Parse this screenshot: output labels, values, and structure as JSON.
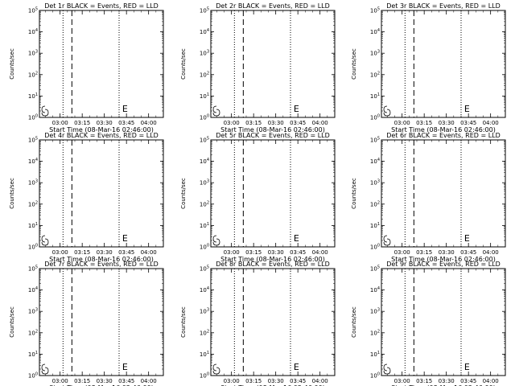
{
  "chart_data": [
    {
      "type": "line",
      "title": "Det 1r BLACK = Events, RED = LLD",
      "xlabel": "Start Time (08-Mar-16 02:46:00)",
      "ylabel": "Counts/sec",
      "x_ticks": [
        "03:00",
        "03:15",
        "03:30",
        "03:45",
        "04:00"
      ],
      "y_ticks": [
        "10^0",
        "10^1",
        "10^2",
        "10^3",
        "10^4",
        "10^5"
      ],
      "ylim": [
        1,
        100000
      ],
      "y_scale": "log",
      "xlim": [
        "02:46:00",
        "04:10:00"
      ],
      "markers": [
        {
          "time": "03:02",
          "style": "dotted"
        },
        {
          "time": "03:08",
          "style": "dashed"
        },
        {
          "time": "03:40",
          "style": "dotted"
        }
      ],
      "annotations": [
        {
          "text": "E",
          "time": "03:41"
        }
      ],
      "series": [
        {
          "values": []
        }
      ]
    },
    {
      "type": "line",
      "title": "Det 2r BLACK = Events, RED = LLD",
      "xlabel": "Start Time (08-Mar-16 02:46:00)",
      "ylabel": "Counts/sec",
      "x_ticks": [
        "03:00",
        "03:15",
        "03:30",
        "03:45",
        "04:00"
      ],
      "y_ticks": [
        "10^0",
        "10^1",
        "10^2",
        "10^3",
        "10^4",
        "10^5"
      ],
      "ylim": [
        1,
        100000
      ],
      "y_scale": "log",
      "xlim": [
        "02:46:00",
        "04:10:00"
      ],
      "markers": [
        {
          "time": "03:02",
          "style": "dotted"
        },
        {
          "time": "03:08",
          "style": "dashed"
        },
        {
          "time": "03:40",
          "style": "dotted"
        }
      ],
      "annotations": [
        {
          "text": "E",
          "time": "03:41"
        }
      ],
      "series": [
        {
          "values": []
        }
      ]
    },
    {
      "type": "line",
      "title": "Det 3r BLACK = Events, RED = LLD",
      "xlabel": "Start Time (08-Mar-16 02:46:00)",
      "ylabel": "Counts/sec",
      "x_ticks": [
        "03:00",
        "03:15",
        "03:30",
        "03:45",
        "04:00"
      ],
      "y_ticks": [
        "10^0",
        "10^1",
        "10^2",
        "10^3",
        "10^4",
        "10^5"
      ],
      "ylim": [
        1,
        100000
      ],
      "y_scale": "log",
      "xlim": [
        "02:46:00",
        "04:10:00"
      ],
      "markers": [
        {
          "time": "03:02",
          "style": "dotted"
        },
        {
          "time": "03:08",
          "style": "dashed"
        },
        {
          "time": "03:40",
          "style": "dotted"
        }
      ],
      "annotations": [
        {
          "text": "E",
          "time": "03:41"
        }
      ],
      "series": [
        {
          "values": []
        }
      ]
    },
    {
      "type": "line",
      "title": "Det 4r BLACK = Events, RED = LLD",
      "xlabel": "Start Time (08-Mar-16 02:46:00)",
      "ylabel": "Counts/sec",
      "x_ticks": [
        "03:00",
        "03:15",
        "03:30",
        "03:45",
        "04:00"
      ],
      "y_ticks": [
        "10^0",
        "10^1",
        "10^2",
        "10^3",
        "10^4",
        "10^5"
      ],
      "ylim": [
        1,
        100000
      ],
      "y_scale": "log",
      "xlim": [
        "02:46:00",
        "04:10:00"
      ],
      "markers": [
        {
          "time": "03:02",
          "style": "dotted"
        },
        {
          "time": "03:08",
          "style": "dashed"
        },
        {
          "time": "03:40",
          "style": "dotted"
        }
      ],
      "annotations": [
        {
          "text": "E",
          "time": "03:41"
        }
      ],
      "series": [
        {
          "values": []
        }
      ]
    },
    {
      "type": "line",
      "title": "Det 5r BLACK = Events, RED = LLD",
      "xlabel": "Start Time (08-Mar-16 02:46:00)",
      "ylabel": "Counts/sec",
      "x_ticks": [
        "03:00",
        "03:15",
        "03:30",
        "03:45",
        "04:00"
      ],
      "y_ticks": [
        "10^0",
        "10^1",
        "10^2",
        "10^3",
        "10^4",
        "10^5"
      ],
      "ylim": [
        1,
        100000
      ],
      "y_scale": "log",
      "xlim": [
        "02:46:00",
        "04:10:00"
      ],
      "markers": [
        {
          "time": "03:02",
          "style": "dotted"
        },
        {
          "time": "03:08",
          "style": "dashed"
        },
        {
          "time": "03:40",
          "style": "dotted"
        }
      ],
      "annotations": [
        {
          "text": "E",
          "time": "03:41"
        }
      ],
      "series": [
        {
          "values": []
        }
      ]
    },
    {
      "type": "line",
      "title": "Det 6r BLACK = Events, RED = LLD",
      "xlabel": "Start Time (08-Mar-16 02:46:00)",
      "ylabel": "Counts/sec",
      "x_ticks": [
        "03:00",
        "03:15",
        "03:30",
        "03:45",
        "04:00"
      ],
      "y_ticks": [
        "10^0",
        "10^1",
        "10^2",
        "10^3",
        "10^4",
        "10^5"
      ],
      "ylim": [
        1,
        100000
      ],
      "y_scale": "log",
      "xlim": [
        "02:46:00",
        "04:10:00"
      ],
      "markers": [
        {
          "time": "03:02",
          "style": "dotted"
        },
        {
          "time": "03:08",
          "style": "dashed"
        },
        {
          "time": "03:40",
          "style": "dotted"
        }
      ],
      "annotations": [
        {
          "text": "E",
          "time": "03:41"
        }
      ],
      "series": [
        {
          "values": []
        }
      ]
    },
    {
      "type": "line",
      "title": "Det 7r BLACK = Events, RED = LLD",
      "xlabel": "Start Time (08-Mar-16 02:46:00)",
      "ylabel": "Counts/sec",
      "x_ticks": [
        "03:00",
        "03:15",
        "03:30",
        "03:45",
        "04:00"
      ],
      "y_ticks": [
        "10^0",
        "10^1",
        "10^2",
        "10^3",
        "10^4",
        "10^5"
      ],
      "ylim": [
        1,
        100000
      ],
      "y_scale": "log",
      "xlim": [
        "02:46:00",
        "04:10:00"
      ],
      "markers": [
        {
          "time": "03:02",
          "style": "dotted"
        },
        {
          "time": "03:08",
          "style": "dashed"
        },
        {
          "time": "03:40",
          "style": "dotted"
        }
      ],
      "annotations": [
        {
          "text": "E",
          "time": "03:41"
        }
      ],
      "series": [
        {
          "values": []
        }
      ]
    },
    {
      "type": "line",
      "title": "Det 8r BLACK = Events, RED = LLD",
      "xlabel": "Start Time (08-Mar-16 02:46:00)",
      "ylabel": "Counts/sec",
      "x_ticks": [
        "03:00",
        "03:15",
        "03:30",
        "03:45",
        "04:00"
      ],
      "y_ticks": [
        "10^0",
        "10^1",
        "10^2",
        "10^3",
        "10^4",
        "10^5"
      ],
      "ylim": [
        1,
        100000
      ],
      "y_scale": "log",
      "xlim": [
        "02:46:00",
        "04:10:00"
      ],
      "markers": [
        {
          "time": "03:02",
          "style": "dotted"
        },
        {
          "time": "03:08",
          "style": "dashed"
        },
        {
          "time": "03:40",
          "style": "dotted"
        }
      ],
      "annotations": [
        {
          "text": "E",
          "time": "03:41"
        }
      ],
      "series": [
        {
          "values": []
        }
      ]
    },
    {
      "type": "line",
      "title": "Det 9r BLACK = Events, RED = LLD",
      "xlabel": "Start Time (08-Mar-16 02:46:00)",
      "ylabel": "Counts/sec",
      "x_ticks": [
        "03:00",
        "03:15",
        "03:30",
        "03:45",
        "04:00"
      ],
      "y_ticks": [
        "10^0",
        "10^1",
        "10^2",
        "10^3",
        "10^4",
        "10^5"
      ],
      "ylim": [
        1,
        100000
      ],
      "y_scale": "log",
      "xlim": [
        "02:46:00",
        "04:10:00"
      ],
      "markers": [
        {
          "time": "03:02",
          "style": "dotted"
        },
        {
          "time": "03:08",
          "style": "dashed"
        },
        {
          "time": "03:40",
          "style": "dotted"
        }
      ],
      "annotations": [
        {
          "text": "E",
          "time": "03:41"
        }
      ],
      "series": [
        {
          "values": []
        }
      ]
    }
  ]
}
